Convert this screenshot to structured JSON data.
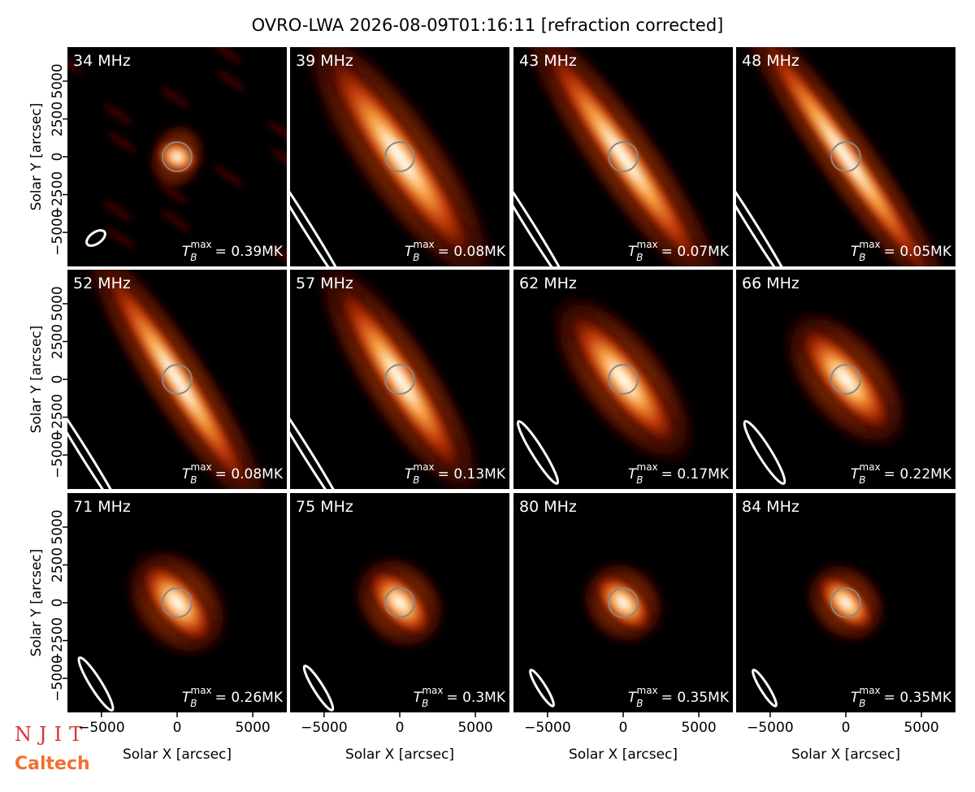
{
  "title": "OVRO-LWA 2026-08-09T01:16:11 [refraction corrected]",
  "x_label": "Solar X [arcsec]",
  "y_label": "Solar Y [arcsec]",
  "xlim": [
    -7250,
    7250
  ],
  "ylim": [
    -7250,
    7250
  ],
  "xticks": [
    {
      "value": -5000,
      "label": "−5000"
    },
    0,
    5000
  ],
  "yticks": [
    {
      "value": -5000,
      "label": "−5000"
    },
    {
      "value": -2500,
      "label": "−2500"
    },
    0,
    2500,
    5000
  ],
  "tb_symbol": {
    "main": "T",
    "sub": "B",
    "sup": "max"
  },
  "panels": [
    {
      "freq": "34 MHz",
      "tb": "= 0.39MK"
    },
    {
      "freq": "39 MHz",
      "tb": "= 0.08MK"
    },
    {
      "freq": "43 MHz",
      "tb": "= 0.07MK"
    },
    {
      "freq": "48 MHz",
      "tb": "= 0.05MK"
    },
    {
      "freq": "52 MHz",
      "tb": "= 0.08MK"
    },
    {
      "freq": "57 MHz",
      "tb": "= 0.13MK"
    },
    {
      "freq": "62 MHz",
      "tb": "= 0.17MK"
    },
    {
      "freq": "66 MHz",
      "tb": "= 0.22MK"
    },
    {
      "freq": "71 MHz",
      "tb": "= 0.26MK"
    },
    {
      "freq": "75 MHz",
      "tb": "= 0.3MK"
    },
    {
      "freq": "80 MHz",
      "tb": "= 0.35MK"
    },
    {
      "freq": "84 MHz",
      "tb": "= 0.35MK"
    }
  ],
  "logos": {
    "njit": "NJIT",
    "caltech": "Caltech"
  }
}
